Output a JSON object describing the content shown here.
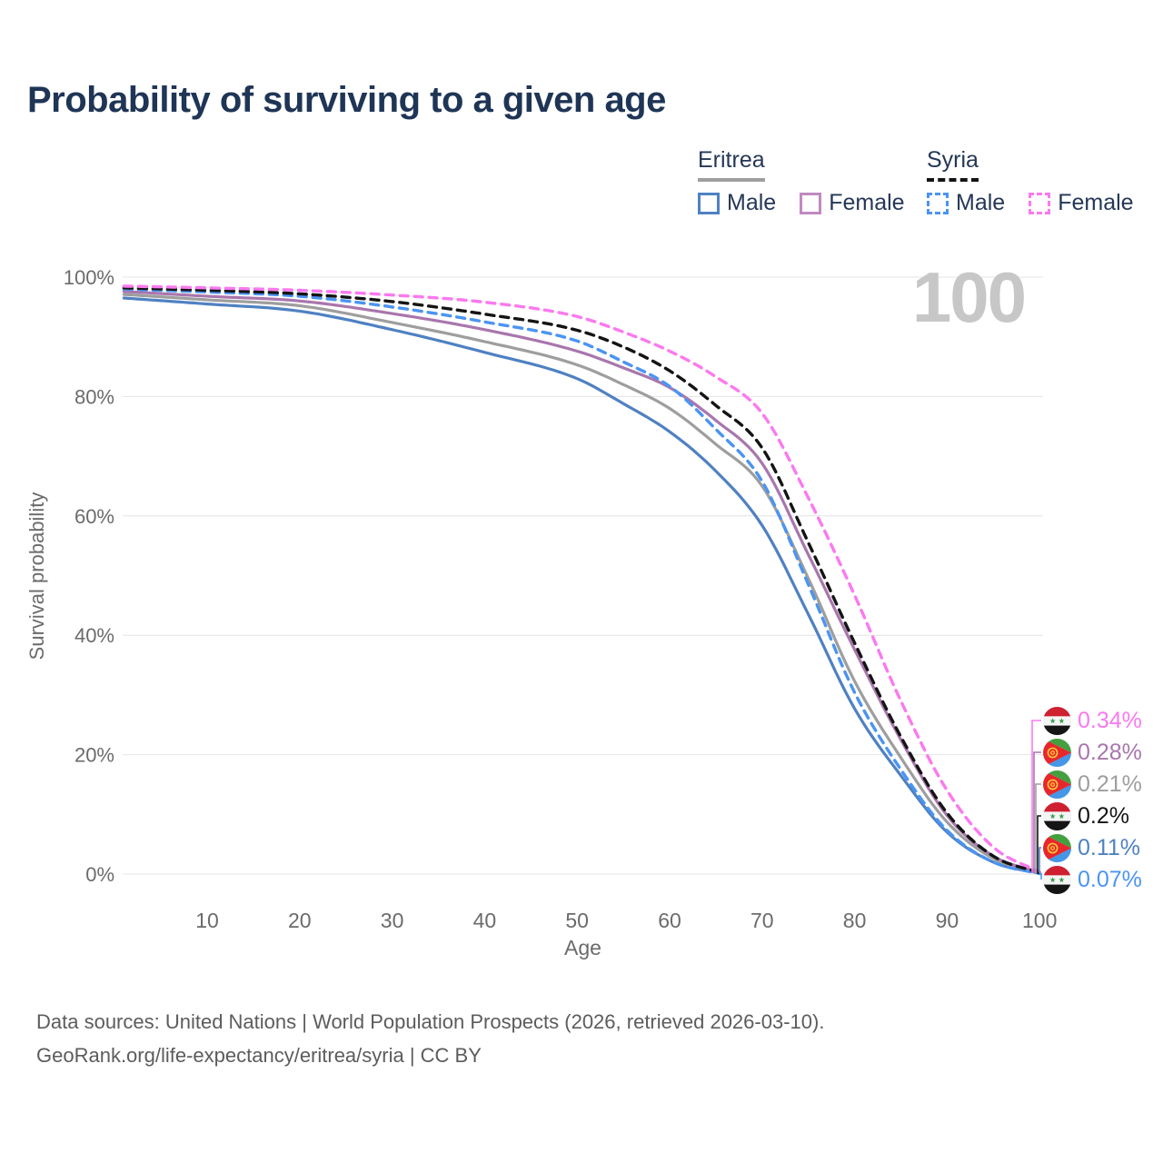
{
  "title": "Probability of surviving to a given age",
  "watermark": "100",
  "colors": {
    "title": "#1f3556",
    "axis_text": "#6b6b6b",
    "grid": "#e4e4e4",
    "watermark": "#c7c7c7",
    "source_text": "#5c5c5c",
    "eritrea_male": "#4f81c2",
    "eritrea_female": "#a976ad",
    "eritrea_both": "#9e9e9e",
    "syria_male": "#4b94f2",
    "syria_female": "#fb79ef",
    "syria_both": "#141414"
  },
  "legend": {
    "groups": [
      {
        "country": "Eritrea",
        "underline_style": "solid",
        "underline_color": "#9e9e9e",
        "items": [
          {
            "label": "Male",
            "color": "#4f81c2",
            "style": "solid"
          },
          {
            "label": "Female",
            "color": "#c08ac0",
            "style": "solid"
          }
        ]
      },
      {
        "country": "Syria",
        "underline_style": "dashed",
        "underline_color": "#141414",
        "items": [
          {
            "label": "Male",
            "color": "#4b94f2",
            "style": "dashed"
          },
          {
            "label": "Female",
            "color": "#fb79ef",
            "style": "dashed"
          }
        ]
      }
    ]
  },
  "axes": {
    "y_label": "Survival probability",
    "x_label": "Age",
    "y_ticks": [
      "0%",
      "20%",
      "40%",
      "60%",
      "80%",
      "100%"
    ],
    "x_ticks": [
      "10",
      "20",
      "30",
      "40",
      "50",
      "60",
      "70",
      "80",
      "90",
      "100"
    ]
  },
  "end_labels": [
    {
      "flag": "syria-flag",
      "label": "0.34%",
      "color": "#fb79ef",
      "series": "Syria Female"
    },
    {
      "flag": "eritrea-flag",
      "label": "0.28%",
      "color": "#a976ad",
      "series": "Eritrea Female"
    },
    {
      "flag": "eritrea-flag",
      "label": "0.21%",
      "color": "#9e9e9e",
      "series": "Eritrea Both sexes"
    },
    {
      "flag": "syria-flag",
      "label": "0.2%",
      "color": "#141414",
      "series": "Syria Both sexes"
    },
    {
      "flag": "eritrea-flag",
      "label": "0.11%",
      "color": "#4f81c2",
      "series": "Eritrea Male"
    },
    {
      "flag": "syria-flag",
      "label": "0.07%",
      "color": "#4b94f2",
      "series": "Syria Male"
    }
  ],
  "sources": {
    "line1": "Data sources: United Nations | World Population Prospects (2026, retrieved 2026-03-10).",
    "line2_link": "GeoRank.org/life-expectancy/eritrea/syria",
    "line2_suffix": " | CC BY"
  },
  "chart_data": {
    "type": "line",
    "title": "Probability of surviving to a given age",
    "xlabel": "Age",
    "ylabel": "Survival probability",
    "xlim": [
      1,
      100
    ],
    "ylim": [
      0,
      100
    ],
    "grid": "horizontal",
    "legend_position": "top-right",
    "x": [
      1,
      10,
      20,
      30,
      40,
      50,
      55,
      60,
      65,
      70,
      75,
      80,
      85,
      90,
      95,
      100
    ],
    "series": [
      {
        "name": "Syria Female",
        "country": "Syria",
        "sex": "Female",
        "color": "#fb79ef",
        "dash": true,
        "values": [
          98.5,
          98.2,
          97.8,
          97.0,
          95.8,
          93.4,
          90.8,
          87.6,
          83.3,
          77.2,
          63.0,
          46.7,
          29.0,
          14.0,
          4.5,
          0.34
        ]
      },
      {
        "name": "Syria Both sexes",
        "country": "Syria",
        "sex": "Both sexes",
        "color": "#141414",
        "dash": true,
        "values": [
          98.2,
          97.8,
          97.2,
          95.9,
          93.8,
          91.1,
          88.3,
          84.3,
          78.5,
          71.4,
          55.5,
          38.7,
          23.0,
          10.2,
          3.0,
          0.2
        ]
      },
      {
        "name": "Syria Male",
        "country": "Syria",
        "sex": "Male",
        "color": "#4b94f2",
        "dash": true,
        "values": [
          98.0,
          97.5,
          96.8,
          95.0,
          92.5,
          89.3,
          85.8,
          81.7,
          74.5,
          65.8,
          48.5,
          30.4,
          17.5,
          7.3,
          2.0,
          0.07
        ]
      },
      {
        "name": "Eritrea Female",
        "country": "Eritrea",
        "sex": "Female",
        "color": "#a976ad",
        "dash": false,
        "values": [
          97.6,
          96.8,
          96.0,
          93.9,
          91.2,
          87.6,
          84.8,
          81.5,
          76.0,
          68.8,
          53.5,
          37.6,
          22.5,
          9.8,
          3.0,
          0.28
        ]
      },
      {
        "name": "Eritrea Both sexes",
        "country": "Eritrea",
        "sex": "Both sexes",
        "color": "#9e9e9e",
        "dash": false,
        "values": [
          97.1,
          96.2,
          95.2,
          92.4,
          89.2,
          85.3,
          82.0,
          78.0,
          72.0,
          65.0,
          49.5,
          32.3,
          19.5,
          8.7,
          2.6,
          0.21
        ]
      },
      {
        "name": "Eritrea Male",
        "country": "Eritrea",
        "sex": "Male",
        "color": "#4f81c2",
        "dash": false,
        "values": [
          96.5,
          95.5,
          94.3,
          91.2,
          87.4,
          83.0,
          78.8,
          74.1,
          67.5,
          58.4,
          43.5,
          27.7,
          16.5,
          7.0,
          2.0,
          0.11
        ]
      }
    ]
  }
}
